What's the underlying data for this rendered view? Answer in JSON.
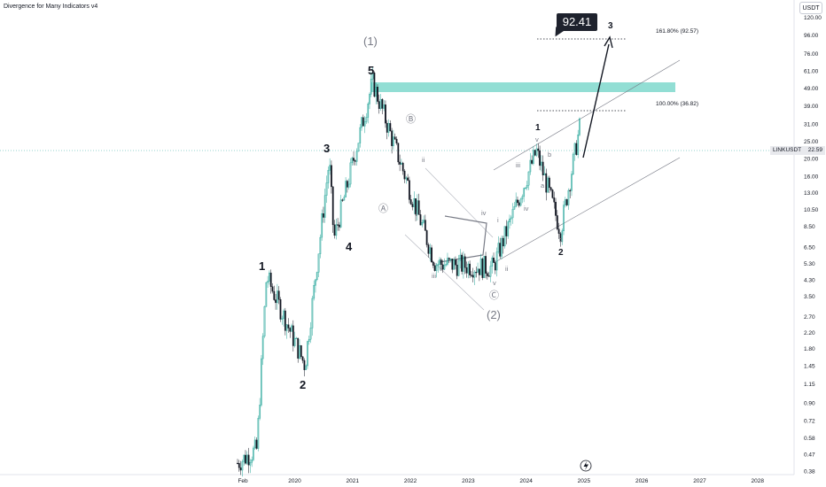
{
  "indicator_label": "Divergence for Many Indicators v4",
  "currency": "USDT",
  "price_tag": {
    "symbol": "LINKUSDT",
    "value": "22.59"
  },
  "callout_value": "92.41",
  "fib_labels": {
    "upper": "161.80% (92.57)",
    "lower": "100.00% (36.82)"
  },
  "colors": {
    "candle_up": "#26a69a",
    "candle_down": "#131722",
    "highlight_zone": "#7fd8cc",
    "wave_gray": "#787b86",
    "wave_black": "#131722"
  },
  "chart_data": {
    "type": "candlestick",
    "y_axis_scale": "log",
    "ylim": [
      0.36,
      130
    ],
    "x_tick_labels": [
      "Feb",
      "2020",
      "2021",
      "2022",
      "2023",
      "2024",
      "2025",
      "2026",
      "2027",
      "2028"
    ],
    "y_tick_labels": [
      "120.00",
      "96.00",
      "76.00",
      "61.00",
      "49.00",
      "39.00",
      "31.00",
      "25.00",
      "20.00",
      "16.00",
      "13.00",
      "10.50",
      "8.50",
      "6.50",
      "5.30",
      "4.30",
      "3.50",
      "2.70",
      "2.20",
      "1.80",
      "1.45",
      "1.15",
      "0.90",
      "0.72",
      "0.58",
      "0.47",
      "0.38"
    ],
    "key_prices": [
      {
        "date": "2019-07",
        "price": 4.5
      },
      {
        "date": "2020-03",
        "price": 1.45
      },
      {
        "date": "2020-08",
        "price": 19.5
      },
      {
        "date": "2020-09",
        "price": 7.2
      },
      {
        "date": "2021-05",
        "price": 52.9
      },
      {
        "date": "2022-06",
        "price": 5.3
      },
      {
        "date": "2023-06",
        "price": 5.0
      },
      {
        "date": "2024-03",
        "price": 22.0
      },
      {
        "date": "2024-08",
        "price": 8.0
      },
      {
        "date": "2024-12",
        "price": 30.0
      }
    ],
    "projection_target": 92.41,
    "fib_levels": [
      {
        "label": "161.80% (92.57)",
        "price": 92.57
      },
      {
        "label": "100.00% (36.82)",
        "price": 36.82
      }
    ],
    "resistance_zone": [
      48,
      54
    ],
    "last_price": 22.59,
    "wave_labels": [
      {
        "text": "(1)",
        "style": "gray-large"
      },
      {
        "text": "5",
        "style": "black"
      },
      {
        "text": "3",
        "style": "black"
      },
      {
        "text": "4",
        "style": "black"
      },
      {
        "text": "1",
        "style": "black"
      },
      {
        "text": "2",
        "style": "black"
      },
      {
        "text": "Ⓑ",
        "style": "gray"
      },
      {
        "text": "Ⓐ",
        "style": "gray"
      },
      {
        "text": "ii",
        "style": "gray-small"
      },
      {
        "text": "i",
        "style": "gray-small"
      },
      {
        "text": "iii",
        "style": "gray-small"
      },
      {
        "text": "iv",
        "style": "gray-small"
      },
      {
        "text": "v",
        "style": "gray-small"
      },
      {
        "text": "Ⓒ",
        "style": "gray"
      },
      {
        "text": "(2)",
        "style": "gray-large"
      },
      {
        "text": "i",
        "style": "gray-small"
      },
      {
        "text": "ii",
        "style": "gray-small"
      },
      {
        "text": "iii",
        "style": "gray-small"
      },
      {
        "text": "iv",
        "style": "gray-small"
      },
      {
        "text": "1",
        "style": "black-small"
      },
      {
        "text": "v",
        "style": "gray-small"
      },
      {
        "text": "b",
        "style": "gray-small"
      },
      {
        "text": "a",
        "style": "gray-small"
      },
      {
        "text": "c",
        "style": "gray-small"
      },
      {
        "text": "2",
        "style": "black-small"
      },
      {
        "text": "3",
        "style": "black-small"
      }
    ]
  }
}
